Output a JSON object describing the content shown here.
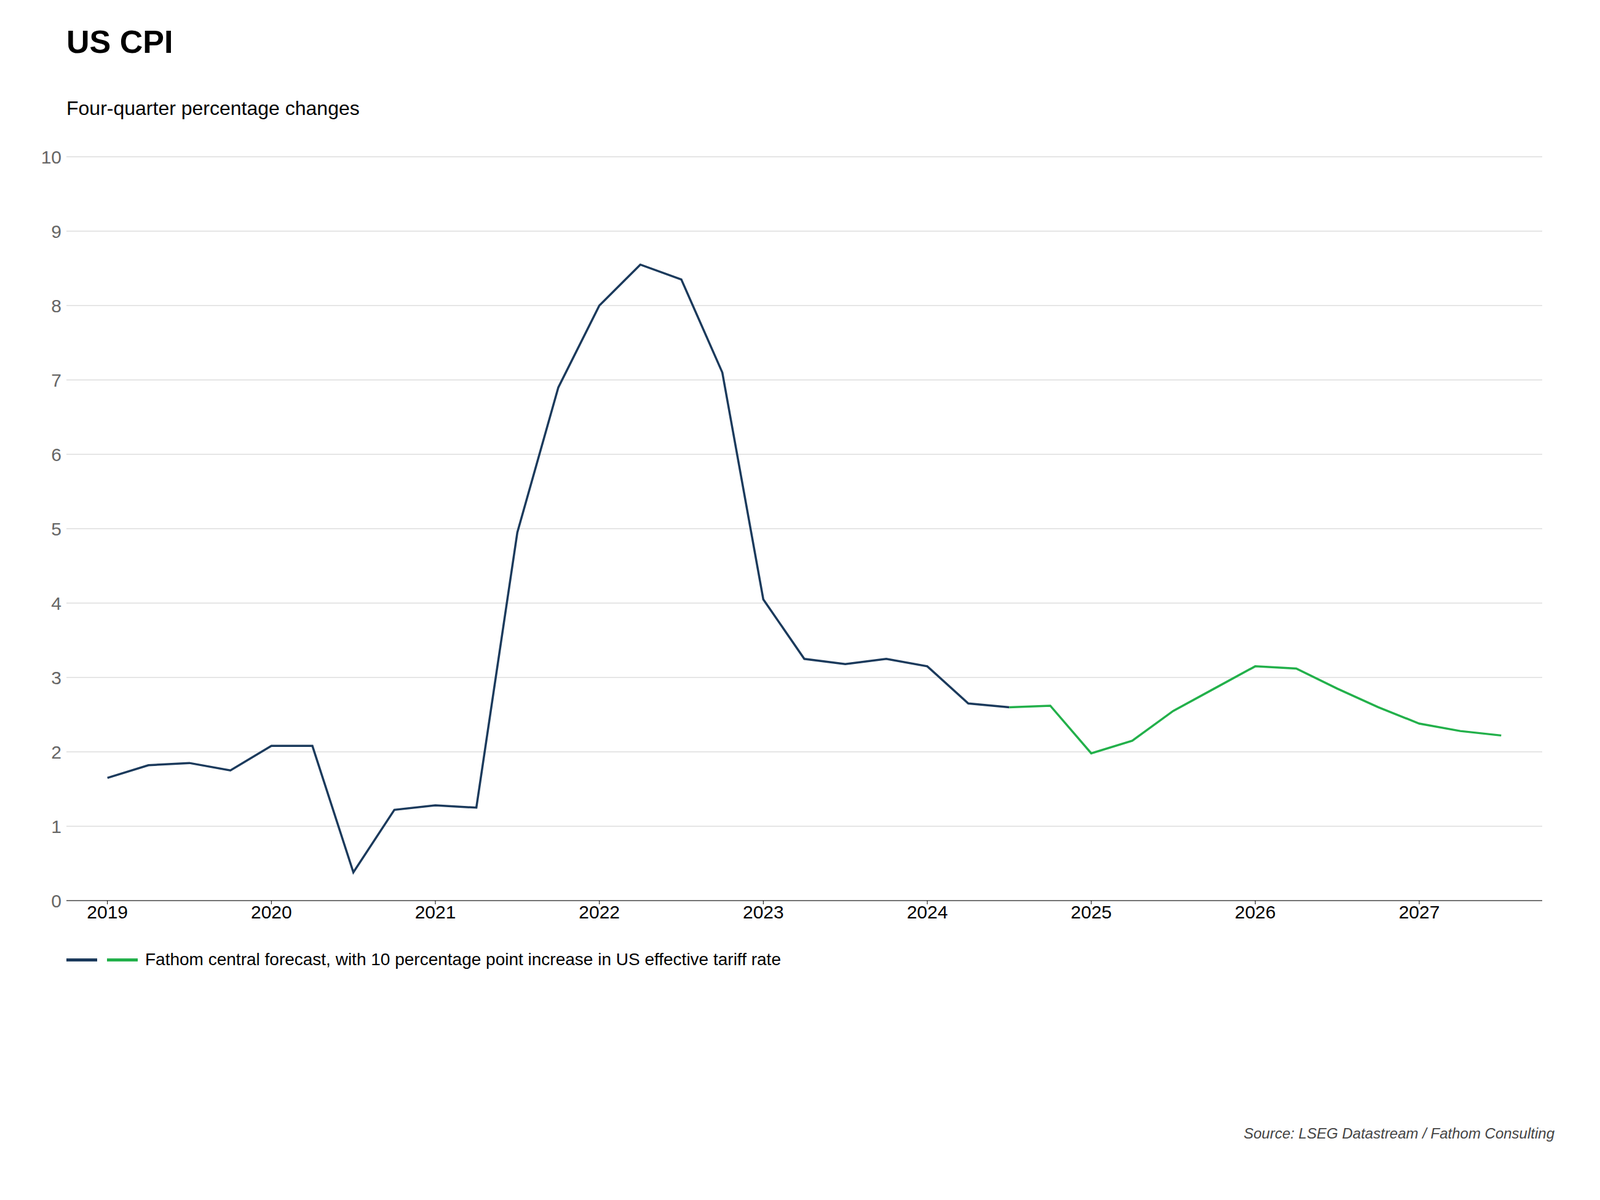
{
  "chart_data": {
    "type": "line",
    "title": "US CPI",
    "subtitle": "Four-quarter percentage changes",
    "source": "Source: LSEG Datastream /  Fathom Consulting",
    "xlim": [
      2018.75,
      2027.75
    ],
    "xticks": [
      2019,
      2020,
      2021,
      2022,
      2023,
      2024,
      2025,
      2026,
      2027
    ],
    "ylim": [
      0,
      10
    ],
    "yticks": [
      0,
      1,
      2,
      3,
      4,
      5,
      6,
      7,
      8,
      9,
      10
    ],
    "grid": true,
    "legend": "bottom",
    "series": [
      {
        "color": "#1b3a5c",
        "x": [
          2019.0,
          2019.25,
          2019.5,
          2019.75,
          2020.0,
          2020.25,
          2020.5,
          2020.75,
          2021.0,
          2021.25,
          2021.5,
          2021.75,
          2022.0,
          2022.25,
          2022.5,
          2022.75,
          2023.0,
          2023.25,
          2023.5,
          2023.75,
          2024.0,
          2024.25,
          2024.5
        ],
        "values": [
          1.65,
          1.82,
          1.85,
          1.75,
          2.08,
          2.08,
          0.38,
          1.22,
          1.28,
          1.25,
          4.95,
          6.9,
          8.0,
          8.55,
          8.35,
          7.1,
          4.05,
          3.25,
          3.18,
          3.25,
          3.15,
          2.65,
          2.6
        ]
      },
      {
        "name": "Fathom central forecast, with 10 percentage point increase in US effective tariff rate",
        "color": "#22b04a",
        "x": [
          2024.5,
          2024.75,
          2025.0,
          2025.25,
          2025.5,
          2025.75,
          2026.0,
          2026.25,
          2026.5,
          2026.75,
          2027.0,
          2027.25,
          2027.5
        ],
        "values": [
          2.6,
          2.62,
          1.98,
          2.15,
          2.55,
          2.85,
          3.15,
          3.12,
          2.85,
          2.6,
          2.38,
          2.28,
          2.22
        ]
      }
    ]
  }
}
